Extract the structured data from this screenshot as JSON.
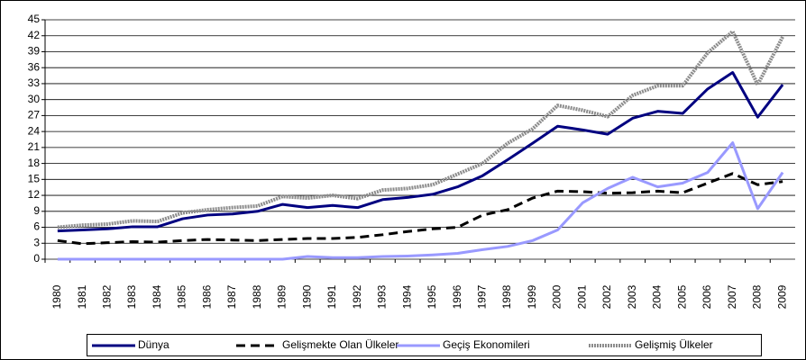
{
  "chart_data": {
    "type": "line",
    "categories": [
      "1980",
      "1981",
      "1982",
      "1983",
      "1984",
      "1985",
      "1986",
      "1987",
      "1988",
      "1989",
      "1990",
      "1991",
      "1992",
      "1993",
      "1994",
      "1995",
      "1996",
      "1997",
      "1998",
      "1999",
      "2000",
      "2001",
      "2002",
      "2003",
      "2004",
      "2005",
      "2006",
      "2007",
      "2008",
      "2009"
    ],
    "series": [
      {
        "name": "Dünya",
        "color": "#000080",
        "style": "solid",
        "values": [
          5.3,
          5.5,
          5.7,
          6.1,
          6.1,
          7.6,
          8.3,
          8.5,
          9,
          10.3,
          9.7,
          10.1,
          9.7,
          11.2,
          11.6,
          12.2,
          13.6,
          15.7,
          18.7,
          21.8,
          25,
          24.3,
          23.5,
          26.5,
          27.8,
          27.4,
          32,
          35.1,
          26.7,
          32.8
        ]
      },
      {
        "name": "Gelişmekte Olan Ülkeler",
        "color": "#000000",
        "style": "dashed",
        "values": [
          3.5,
          2.9,
          3.1,
          3.3,
          3.2,
          3.5,
          3.7,
          3.6,
          3.5,
          3.7,
          3.9,
          3.9,
          4.1,
          4.6,
          5.2,
          5.7,
          6,
          8.3,
          9.3,
          11.5,
          12.8,
          12.7,
          12.4,
          12.5,
          12.8,
          12.5,
          14.3,
          16.1,
          14,
          14.6
        ]
      },
      {
        "name": "Geçiş Ekonomileri",
        "color": "#9999ff",
        "style": "solid",
        "values": [
          0,
          0,
          0,
          0,
          0,
          0,
          0,
          0,
          0,
          0,
          0.5,
          0.3,
          0.3,
          0.5,
          0.6,
          0.8,
          1.1,
          1.8,
          2.4,
          3.5,
          5.5,
          10.6,
          13.3,
          15.4,
          13.6,
          14.3,
          16.3,
          21.9,
          9.5,
          16.3
        ]
      },
      {
        "name": "Gelişmiş Ülkeler",
        "color": "#8c8c8c",
        "style": "dotted",
        "values": [
          6,
          6.4,
          6.6,
          7.2,
          7.1,
          8.7,
          9.3,
          9.7,
          10,
          11.8,
          11.5,
          12,
          11.4,
          13,
          13.3,
          14,
          16,
          18,
          21.8,
          24.5,
          28.9,
          28,
          26.8,
          30.8,
          32.6,
          32.6,
          38.8,
          42.8,
          32.8,
          41.8
        ]
      }
    ],
    "ylim": [
      0,
      45
    ],
    "yticks": [
      0,
      3,
      6,
      9,
      12,
      15,
      18,
      21,
      24,
      27,
      30,
      33,
      36,
      39,
      42,
      45
    ],
    "grid": true,
    "legend": "bottom"
  }
}
